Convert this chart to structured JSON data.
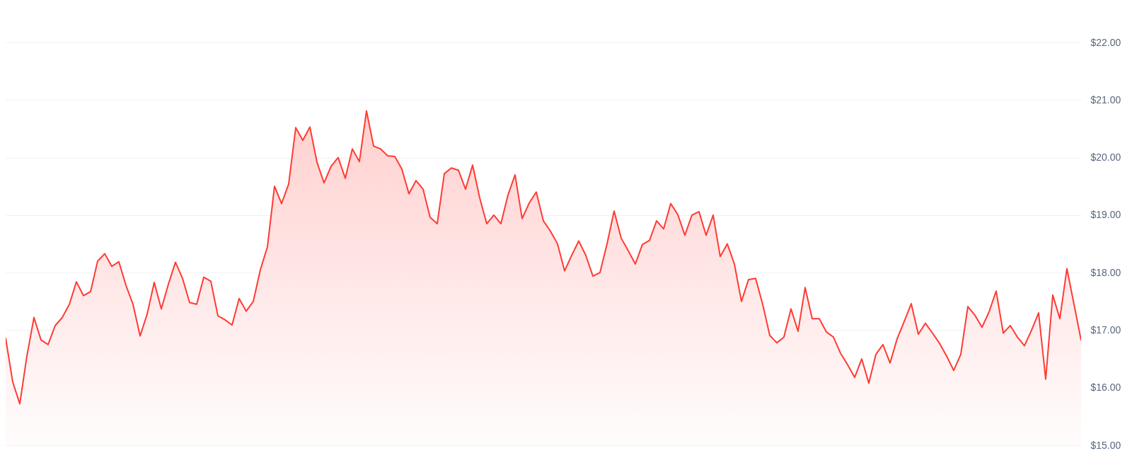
{
  "chart_data": {
    "type": "area",
    "categories": [
      null,
      null,
      null,
      null,
      null,
      null,
      null,
      null,
      null,
      null,
      null,
      null,
      null,
      null,
      null,
      null,
      null,
      null,
      null,
      null,
      null,
      null,
      null,
      null,
      null,
      null,
      null,
      null,
      null,
      null,
      null,
      null,
      null,
      null,
      null,
      null,
      null,
      null,
      null,
      null,
      null,
      null,
      null,
      null,
      null,
      null,
      null,
      null,
      null,
      null,
      null,
      null,
      null,
      null,
      null,
      null,
      null,
      null,
      null,
      null,
      null,
      null,
      null,
      null,
      null,
      null,
      null,
      null,
      null,
      null,
      null,
      null,
      null,
      null,
      null,
      null,
      null,
      null,
      null,
      null,
      null,
      null,
      null,
      null,
      null,
      null,
      null,
      null,
      null,
      null,
      null,
      null,
      null,
      null,
      null,
      null,
      null,
      null,
      null,
      null,
      null,
      null,
      null,
      null,
      null,
      null,
      null,
      null,
      null,
      null,
      null,
      null,
      null,
      null,
      null,
      null,
      null,
      null,
      null,
      null,
      null,
      null,
      null,
      null,
      null,
      null,
      null,
      null,
      null,
      null,
      null,
      null,
      null,
      null,
      null,
      null,
      null,
      null,
      null,
      null,
      null,
      null,
      null,
      null,
      null,
      null,
      null,
      null,
      null,
      null,
      null,
      null,
      null
    ],
    "series": [
      {
        "color": "#ff3a33",
        "values": [
          16.86,
          16.1,
          15.72,
          16.55,
          17.22,
          16.83,
          16.75,
          17.08,
          17.22,
          17.45,
          17.84,
          17.6,
          17.67,
          18.2,
          18.33,
          18.11,
          18.19,
          17.78,
          17.45,
          16.9,
          17.28,
          17.83,
          17.37,
          17.8,
          18.18,
          17.9,
          17.48,
          17.45,
          17.92,
          17.85,
          17.25,
          17.18,
          17.09,
          17.55,
          17.33,
          17.5,
          18.05,
          18.45,
          19.5,
          19.2,
          19.54,
          20.52,
          20.3,
          20.53,
          19.92,
          19.56,
          19.85,
          20.0,
          19.64,
          20.15,
          19.93,
          20.81,
          20.2,
          20.15,
          20.03,
          20.02,
          19.8,
          19.37,
          19.6,
          19.45,
          18.96,
          18.85,
          19.72,
          19.82,
          19.78,
          19.45,
          19.87,
          19.3,
          18.85,
          19.0,
          18.85,
          19.35,
          19.7,
          18.94,
          19.21,
          19.4,
          18.9,
          18.72,
          18.5,
          18.03,
          18.3,
          18.55,
          18.3,
          17.94,
          18.0,
          18.5,
          19.07,
          18.6,
          18.38,
          18.15,
          18.49,
          18.56,
          18.9,
          18.76,
          19.2,
          19.01,
          18.65,
          19.0,
          19.06,
          18.65,
          19.0,
          18.28,
          18.5,
          18.15,
          17.5,
          17.88,
          17.9,
          17.45,
          16.91,
          16.78,
          16.88,
          17.37,
          16.98,
          17.74,
          17.2,
          17.2,
          16.97,
          16.88,
          16.6,
          16.4,
          16.18,
          16.5,
          16.08,
          16.58,
          16.75,
          16.43,
          16.85,
          17.15,
          17.46,
          16.93,
          17.12,
          16.95,
          16.77,
          16.55,
          16.3,
          16.58,
          17.41,
          17.26,
          17.05,
          17.32,
          17.68,
          16.95,
          17.08,
          16.88,
          16.73,
          17.0,
          17.3,
          16.15,
          17.61,
          17.2,
          18.07,
          17.45,
          16.83
        ]
      }
    ],
    "ylim": [
      15,
      22
    ],
    "yticks": [
      {
        "value": 15,
        "label": "$15.00"
      },
      {
        "value": 16,
        "label": "$16.00"
      },
      {
        "value": 17,
        "label": "$17.00"
      },
      {
        "value": 18,
        "label": "$18.00"
      },
      {
        "value": 19,
        "label": "$19.00"
      },
      {
        "value": 20,
        "label": "$20.00"
      },
      {
        "value": 21,
        "label": "$21.00"
      },
      {
        "value": 22,
        "label": "$22.00"
      }
    ],
    "grid": "y",
    "tick_labels": "y"
  }
}
